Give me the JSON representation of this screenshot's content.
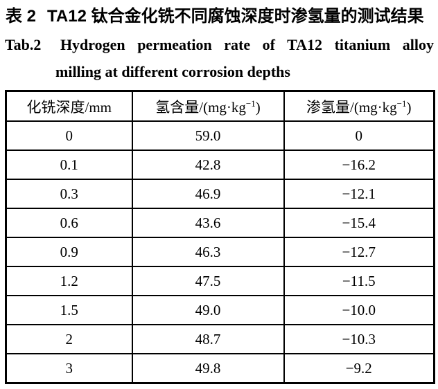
{
  "captions": {
    "zh_label": "表 2",
    "zh_text": "TA12 钛合金化铣不同腐蚀深度时渗氢量的测试结果",
    "en_label": "Tab.2",
    "en_line1": "Hydrogen permeation rate of TA12 titanium alloy",
    "en_line2": "milling at different corrosion depths"
  },
  "table": {
    "headers": [
      {
        "pre": "化铣深度/mm",
        "sup": "",
        "post": ""
      },
      {
        "pre": "氢含量/(mg·kg",
        "sup": "−1",
        "post": ")"
      },
      {
        "pre": "渗氢量/(mg·kg",
        "sup": "−1",
        "post": ")"
      }
    ],
    "rows": [
      [
        "0",
        "59.0",
        "0"
      ],
      [
        "0.1",
        "42.8",
        "−16.2"
      ],
      [
        "0.3",
        "46.9",
        "−12.1"
      ],
      [
        "0.6",
        "43.6",
        "−15.4"
      ],
      [
        "0.9",
        "46.3",
        "−12.7"
      ],
      [
        "1.2",
        "47.5",
        "−11.5"
      ],
      [
        "1.5",
        "49.0",
        "−10.0"
      ],
      [
        "2",
        "48.7",
        "−10.3"
      ],
      [
        "3",
        "49.8",
        "−9.2"
      ]
    ]
  },
  "chart_data": {
    "type": "table",
    "title": "表2 TA12钛合金化铣不同腐蚀深度时渗氢量的测试结果 (Tab.2 Hydrogen permeation rate of TA12 titanium alloy milling at different corrosion depths)",
    "columns": [
      "化铣深度/mm",
      "氢含量/(mg·kg−1)",
      "渗氢量/(mg·kg−1)"
    ],
    "rows": [
      [
        0,
        59.0,
        0
      ],
      [
        0.1,
        42.8,
        -16.2
      ],
      [
        0.3,
        46.9,
        -12.1
      ],
      [
        0.6,
        43.6,
        -15.4
      ],
      [
        0.9,
        46.3,
        -12.7
      ],
      [
        1.2,
        47.5,
        -11.5
      ],
      [
        1.5,
        49.0,
        -10.0
      ],
      [
        2,
        48.7,
        -10.3
      ],
      [
        3,
        49.8,
        -9.2
      ]
    ]
  },
  "colors": {
    "text": "#000000",
    "background": "#ffffff",
    "border": "#000000"
  }
}
